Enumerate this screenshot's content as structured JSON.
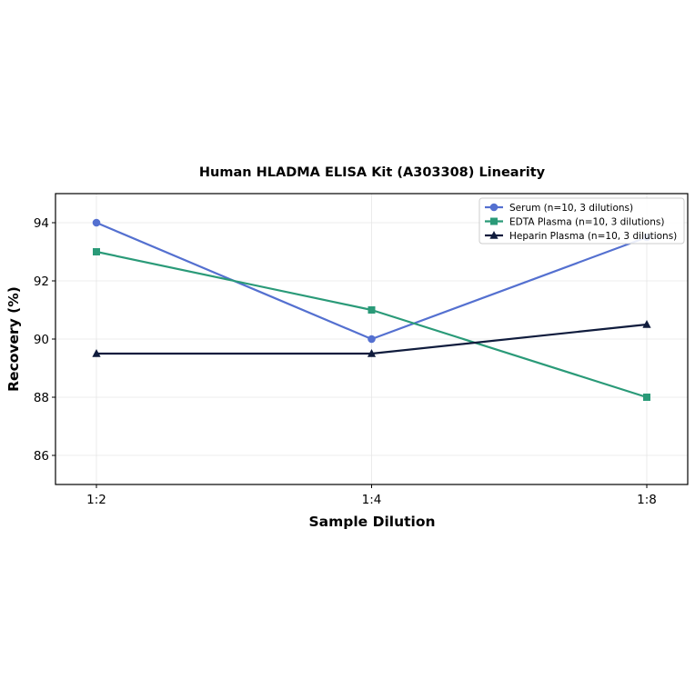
{
  "chart_data": {
    "type": "line",
    "title": "Human HLADMA ELISA Kit (A303308) Linearity",
    "xlabel": "Sample Dilution",
    "ylabel": "Recovery (%)",
    "categories": [
      "1:2",
      "1:4",
      "1:8"
    ],
    "ylim": [
      85,
      95
    ],
    "yticks": [
      86,
      88,
      90,
      92,
      94
    ],
    "grid": true,
    "legend_position": "top-right",
    "series": [
      {
        "name": "Serum (n=10, 3 dilutions)",
        "values": [
          94,
          90,
          93.5
        ],
        "color": "#5470d0",
        "marker": "circle"
      },
      {
        "name": "EDTA Plasma (n=10, 3 dilutions)",
        "values": [
          93,
          91,
          88
        ],
        "color": "#2a9a78",
        "marker": "square"
      },
      {
        "name": "Heparin Plasma (n=10, 3 dilutions)",
        "values": [
          89.5,
          89.5,
          90.5
        ],
        "color": "#101c3d",
        "marker": "triangle"
      }
    ]
  }
}
